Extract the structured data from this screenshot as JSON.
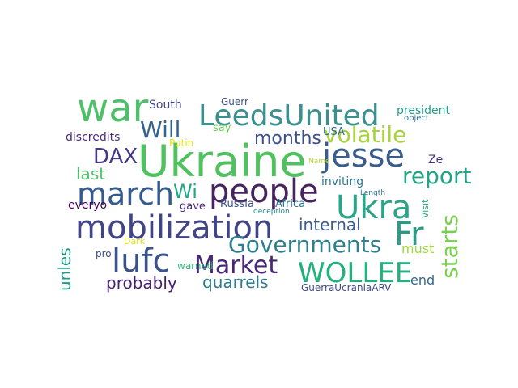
{
  "words": [
    {
      "text": "war",
      "color": "#4fbf6a"
    },
    {
      "text": "LeedsUnited",
      "color": "#3b8f8c"
    },
    {
      "text": "Ukraine",
      "color": "#4fc15e"
    },
    {
      "text": "people",
      "color": "#46245e"
    },
    {
      "text": "jesse",
      "color": "#3a5d8c"
    },
    {
      "text": "Ukra",
      "color": "#2aa587"
    },
    {
      "text": "march",
      "color": "#355a8c"
    },
    {
      "text": "mobilization",
      "color": "#414487"
    },
    {
      "text": "Fr",
      "color": "#2a9b87"
    },
    {
      "text": "lufc",
      "color": "#3b528b"
    },
    {
      "text": "Market",
      "color": "#482777"
    },
    {
      "text": "WOLLEE",
      "color": "#22b07b"
    },
    {
      "text": "Governments",
      "color": "#2d7f8c"
    },
    {
      "text": "volatile",
      "color": "#a9d33a"
    },
    {
      "text": "report",
      "color": "#24a386"
    },
    {
      "text": "starts",
      "color": "#78cf4e"
    },
    {
      "text": "Will",
      "color": "#34638d"
    },
    {
      "text": "DAX",
      "color": "#443983"
    },
    {
      "text": "Wi",
      "color": "#21a584"
    },
    {
      "text": "months",
      "color": "#3c4f8a"
    },
    {
      "text": "internal",
      "color": "#3b5c8c"
    },
    {
      "text": "probably",
      "color": "#482071"
    },
    {
      "text": "quarrels",
      "color": "#2e7d8e"
    },
    {
      "text": "unles",
      "color": "#22988b"
    },
    {
      "text": "last",
      "color": "#4ec36b"
    },
    {
      "text": "discredits",
      "color": "#472d7b"
    },
    {
      "text": "everyo",
      "color": "#440154"
    },
    {
      "text": "South",
      "color": "#414487"
    },
    {
      "text": "Guerr",
      "color": "#3b518b"
    },
    {
      "text": "Putin",
      "color": "#e3e418"
    },
    {
      "text": "say",
      "color": "#6ece58"
    },
    {
      "text": "president",
      "color": "#1f9e89"
    },
    {
      "text": "object",
      "color": "#31688e"
    },
    {
      "text": "USA",
      "color": "#31688e"
    },
    {
      "text": "Ze",
      "color": "#46337e"
    },
    {
      "text": "inviting",
      "color": "#2a788e"
    },
    {
      "text": "Name",
      "color": "#b5de2b"
    },
    {
      "text": "Length",
      "color": "#2a788e"
    },
    {
      "text": "Visit",
      "color": "#20a386"
    },
    {
      "text": "Russia",
      "color": "#3b528b"
    },
    {
      "text": "Africa",
      "color": "#2c728e"
    },
    {
      "text": "gave",
      "color": "#482878"
    },
    {
      "text": "must",
      "color": "#a0da39"
    },
    {
      "text": "Dark",
      "color": "#dde318"
    },
    {
      "text": "pro",
      "color": "#3e4a89"
    },
    {
      "text": "warned",
      "color": "#35b779"
    },
    {
      "text": "end",
      "color": "#31688e"
    },
    {
      "text": "GuerraUcraniaARV",
      "color": "#3e4c8a"
    },
    {
      "text": "deception",
      "color": "#25858e"
    }
  ]
}
